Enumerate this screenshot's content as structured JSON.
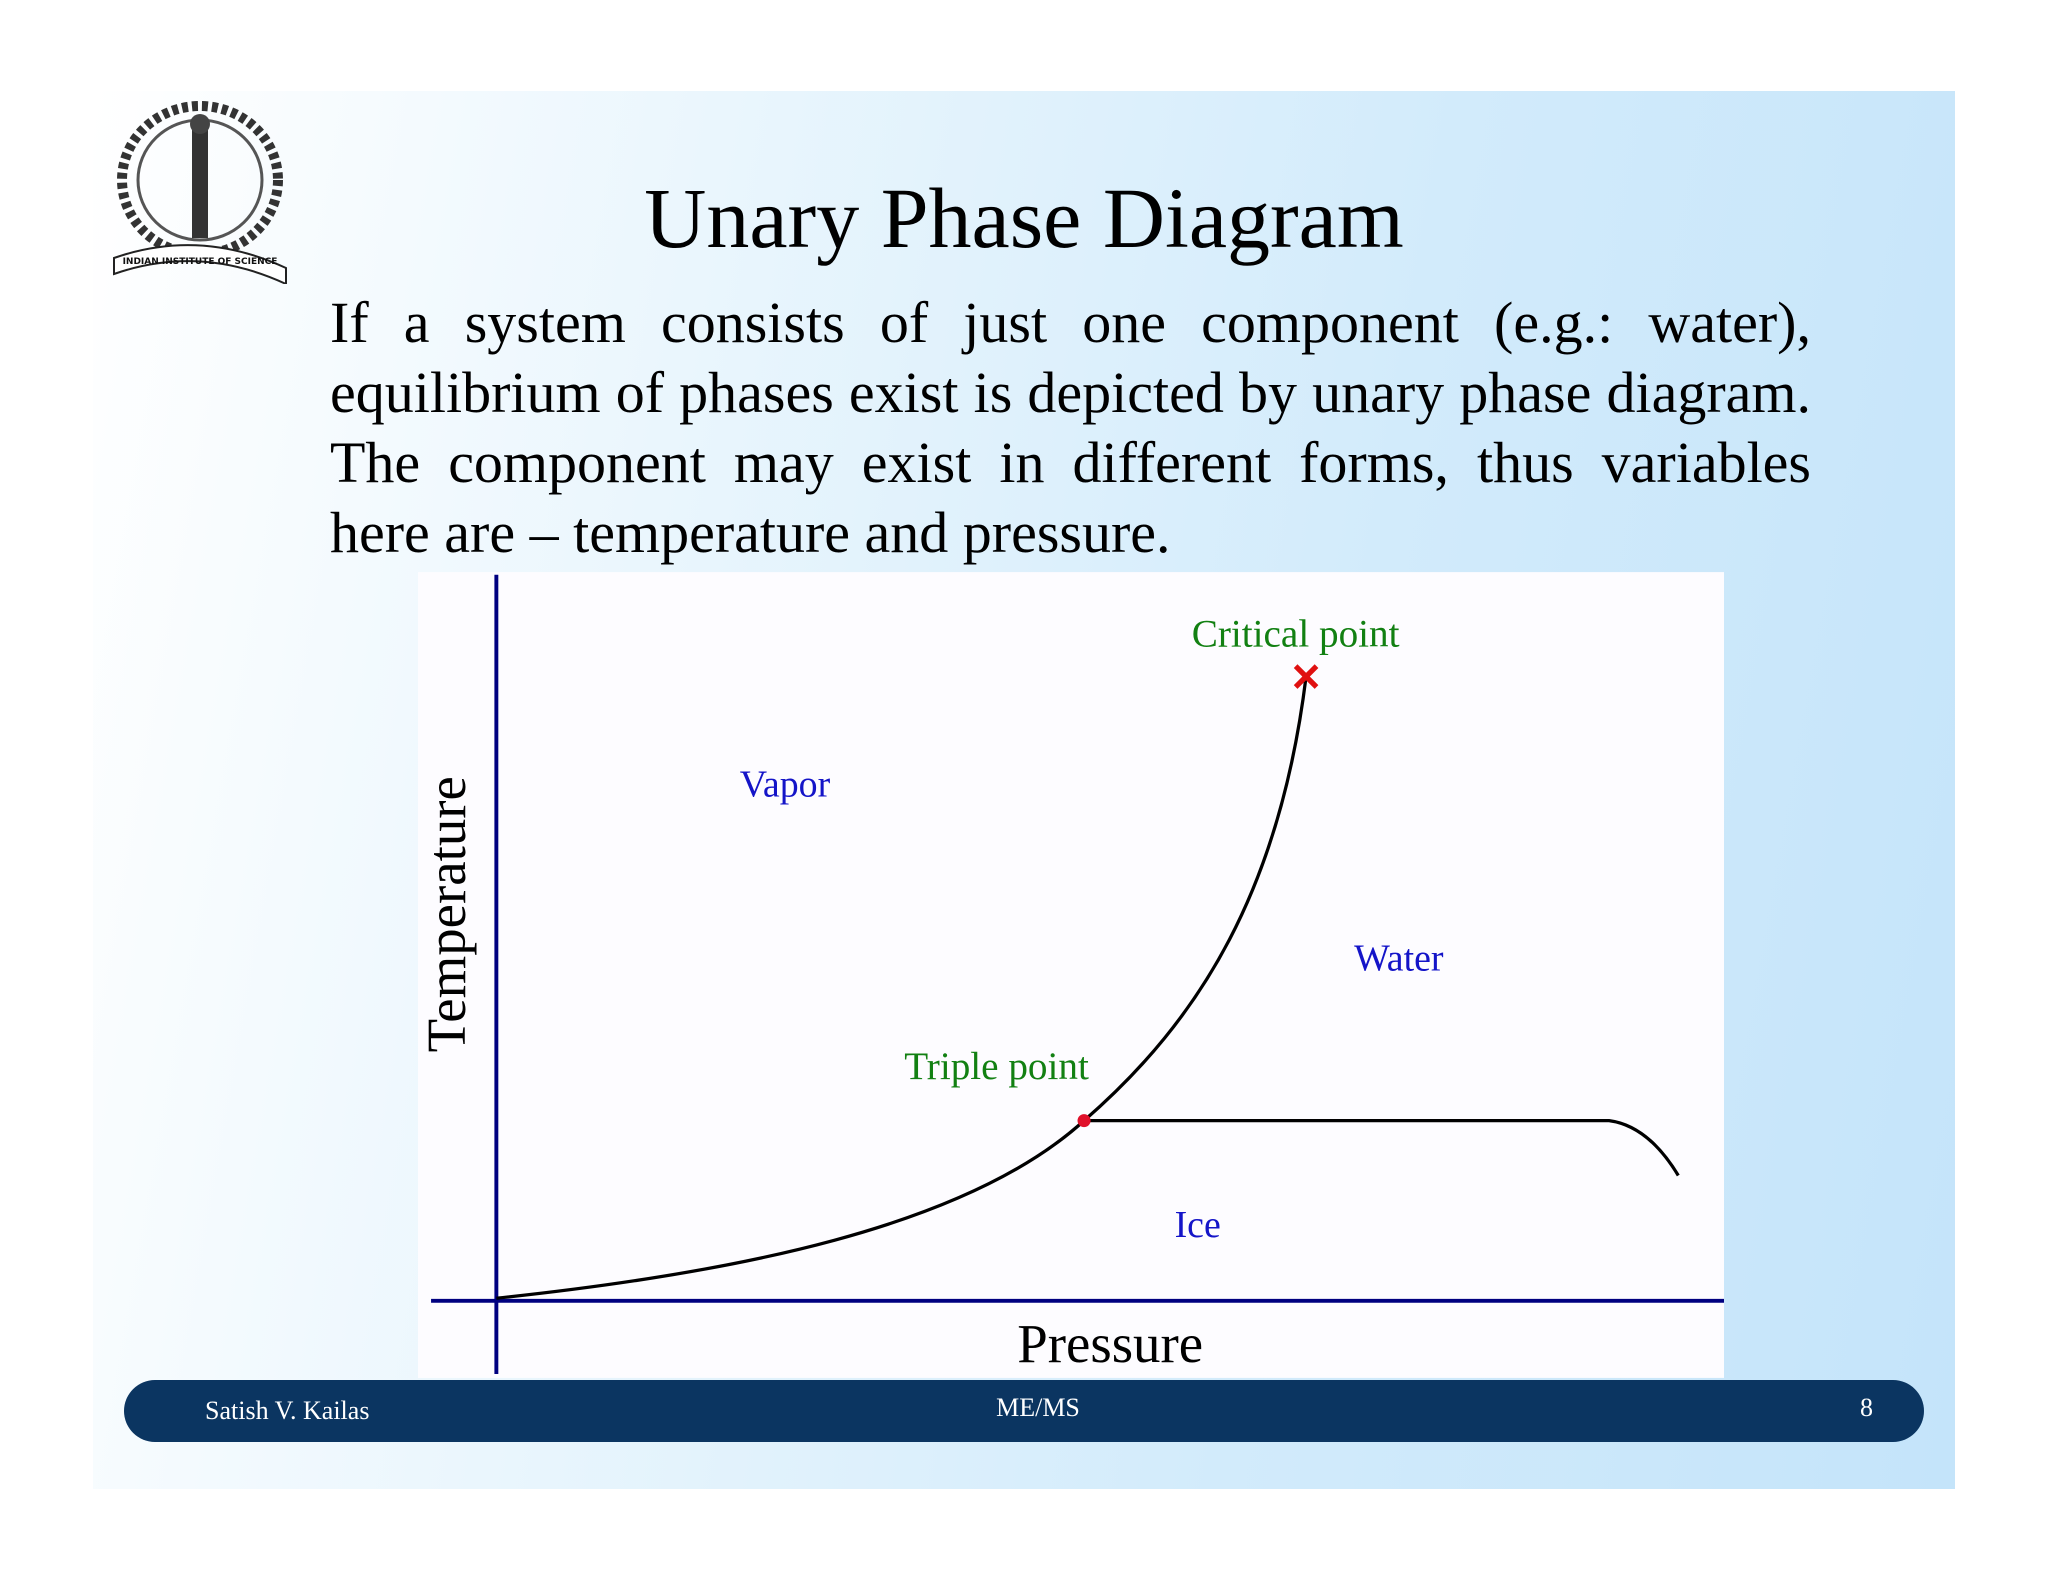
{
  "logo": {
    "text": "INDIAN INSTITUTE OF SCIENCE"
  },
  "header": {
    "title": "Unary Phase Diagram"
  },
  "body": {
    "paragraph": "If a system consists of just one component (e.g.: water), equilibrium of phases exist is depicted by unary phase diagram. The component may exist in different forms, thus variables here are – temperature and pressure."
  },
  "diagram": {
    "y_axis_label": "Temperature",
    "x_axis_label": "Pressure",
    "regions": [
      "Vapor",
      "Water",
      "Ice"
    ],
    "points": [
      "Critical point",
      "Triple point"
    ]
  },
  "footer": {
    "author": "Satish V. Kailas",
    "course": "ME/MS",
    "page": "8"
  }
}
